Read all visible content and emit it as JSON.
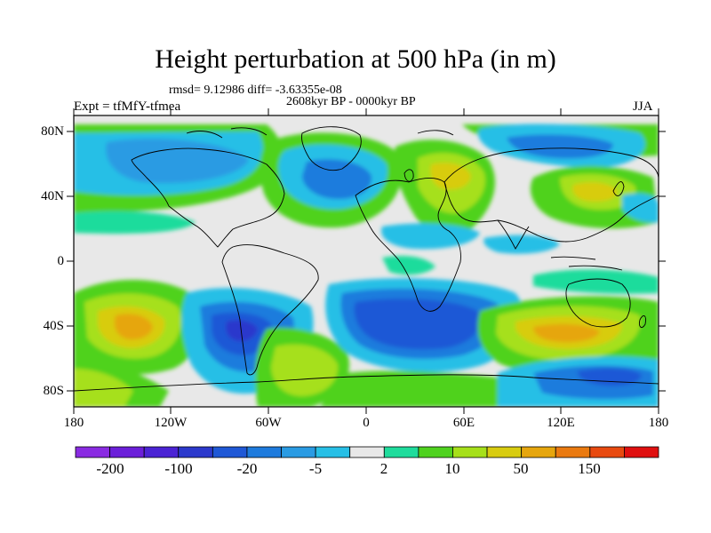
{
  "title": "Height perturbation at 500 hPa (in m)",
  "stats": "rmsd= 9.12986 diff= -3.63355e-08",
  "period": "2608kyr BP - 0000kyr BP",
  "experiment": "Expt = tfMfY-tfmea",
  "season": "JJA",
  "lat_labels": [
    "80N",
    "40N",
    "0",
    "40S",
    "80S"
  ],
  "lon_labels": [
    "180",
    "120W",
    "60W",
    "0",
    "60E",
    "120E",
    "180"
  ],
  "colorbar": {
    "colors": [
      "#8a2be2",
      "#6b1fd9",
      "#4b23d4",
      "#2c39cc",
      "#1f58d6",
      "#1e7bdd",
      "#2a9be3",
      "#27bfe6",
      "#e8e8e8",
      "#1fdc9c",
      "#4fd21f",
      "#a6e01a",
      "#d8cc10",
      "#e6a60e",
      "#ea7a10",
      "#e84a10",
      "#e01010"
    ],
    "labels": [
      "-200",
      "-100",
      "-20",
      "-5",
      "2",
      "10",
      "50",
      "150"
    ]
  },
  "chart_data": {
    "type": "heatmap",
    "title": "Height perturbation at 500 hPa (in m)",
    "projection": "cylindrical-equidistant",
    "lon_range": [
      -180,
      180
    ],
    "lat_range": [
      -90,
      90
    ],
    "contour_levels": [
      -200,
      -150,
      -100,
      -50,
      -20,
      -10,
      -5,
      -2,
      2,
      5,
      10,
      20,
      50,
      100,
      150,
      200
    ],
    "features": [
      {
        "region": "North Pacific",
        "sign": "negative",
        "approx_value": -20
      },
      {
        "region": "North Atlantic / Greenland",
        "sign": "negative",
        "approx_value": -20
      },
      {
        "region": "Europe",
        "sign": "positive",
        "approx_value": 50
      },
      {
        "region": "Siberia",
        "sign": "negative",
        "approx_value": -20
      },
      {
        "region": "East Asia",
        "sign": "positive",
        "approx_value": 50
      },
      {
        "region": "South Pacific 40S",
        "sign": "positive",
        "approx_value": 50
      },
      {
        "region": "South America / SE Pacific",
        "sign": "negative",
        "approx_value": -50
      },
      {
        "region": "South Atlantic / Indian 40S",
        "sign": "negative",
        "approx_value": -50
      },
      {
        "region": "South Indian 60S-80E",
        "sign": "positive",
        "approx_value": 50
      },
      {
        "region": "Southern Ocean 60S-140E",
        "sign": "negative",
        "approx_value": -20
      }
    ]
  }
}
